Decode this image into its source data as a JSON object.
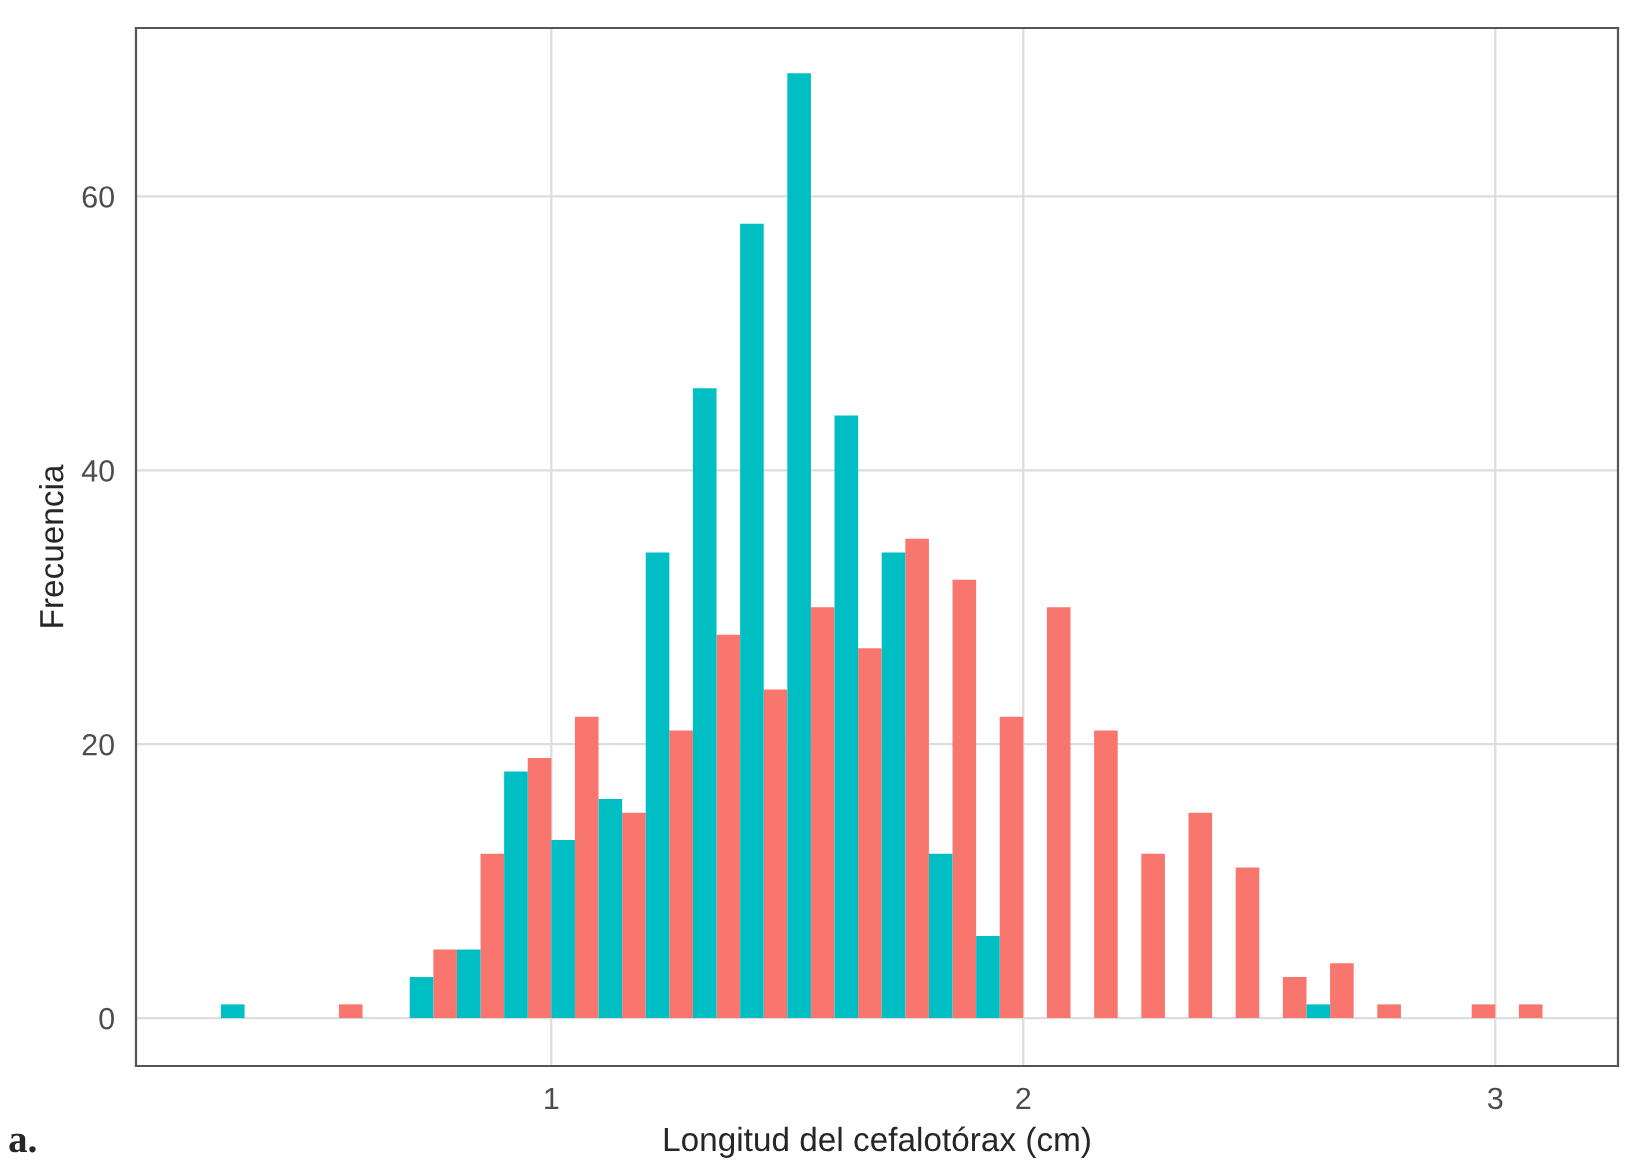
{
  "chart_data": {
    "type": "histogram",
    "xlabel": "Longitud del cefalotórax (cm)",
    "ylabel": "Frecuencia",
    "bins": [
      0.25,
      0.35,
      0.45,
      0.55,
      0.65,
      0.75,
      0.85,
      0.95,
      1.05,
      1.15,
      1.25,
      1.35,
      1.45,
      1.55,
      1.65,
      1.75,
      1.85,
      1.95,
      2.05,
      2.15,
      2.25,
      2.35,
      2.45,
      2.55,
      2.65,
      2.75,
      2.85,
      2.95,
      3.05,
      3.15
    ],
    "series": [
      {
        "color": "#f8766d",
        "values": [
          0,
          0,
          0,
          1,
          0,
          5,
          12,
          19,
          22,
          15,
          21,
          28,
          24,
          30,
          27,
          35,
          32,
          22,
          30,
          21,
          12,
          15,
          11,
          3,
          4,
          1,
          0,
          1,
          1
        ]
      },
      {
        "color": "#00bfc4",
        "values": [
          1,
          0,
          0,
          0,
          3,
          5,
          18,
          13,
          16,
          34,
          46,
          58,
          69,
          44,
          34,
          12,
          6,
          0,
          0,
          0,
          0,
          0,
          0,
          1,
          0,
          0,
          0,
          0,
          0
        ]
      }
    ],
    "xlim": [
      0.12,
      3.26
    ],
    "ylim": [
      -3.5,
      72.3
    ],
    "xticks": [
      1,
      2,
      3
    ],
    "yticks": [
      0,
      20,
      40,
      60
    ],
    "grid": true,
    "legend": false,
    "annotations": [
      "a."
    ]
  }
}
